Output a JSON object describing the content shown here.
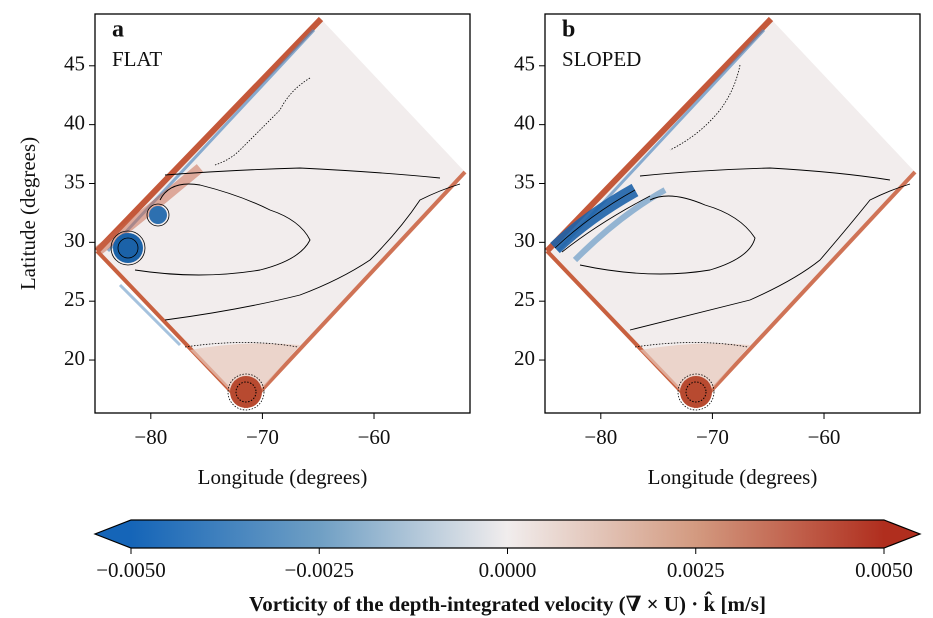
{
  "chart_data": [
    {
      "type": "heatmap",
      "panel_label": "a",
      "title": "FLAT",
      "xlabel": "Longitude (degrees)",
      "ylabel": "Latitude (degrees)",
      "xlim": [
        -85,
        -51.4
      ],
      "ylim": [
        15.5,
        49.4
      ],
      "xticks": [
        {
          "value": -80,
          "label": "−80"
        },
        {
          "value": -70,
          "label": "−70"
        },
        {
          "value": -60,
          "label": "−60"
        }
      ],
      "yticks": [
        20,
        25,
        30,
        35,
        40,
        45
      ]
    },
    {
      "type": "heatmap",
      "panel_label": "b",
      "title": "SLOPED",
      "xlabel": "Longitude (degrees)",
      "xlim": [
        -85,
        -51.4
      ],
      "ylim": [
        15.5,
        49.4
      ],
      "xticks": [
        {
          "value": -80,
          "label": "−80"
        },
        {
          "value": -70,
          "label": "−70"
        },
        {
          "value": -60,
          "label": "−60"
        }
      ],
      "yticks": [
        20,
        25,
        30,
        35,
        40,
        45
      ]
    },
    {
      "type": "colorbar",
      "label": "Vorticity of the depth-integrated velocity (∇ × U) · k̂  [m/s]",
      "xlim": [
        -0.005,
        0.005
      ],
      "extend": "both",
      "colors": [
        "#1565b8",
        "#6f9fc4",
        "#f1eded",
        "#d39a80",
        "#b02e1e"
      ],
      "xticks": [
        {
          "value": -0.005,
          "label": "−0.0050"
        },
        {
          "value": -0.0025,
          "label": "−0.0025"
        },
        {
          "value": 0,
          "label": "0.0000"
        },
        {
          "value": 0.0025,
          "label": "0.0025"
        },
        {
          "value": 0.005,
          "label": "0.0050"
        }
      ]
    }
  ]
}
